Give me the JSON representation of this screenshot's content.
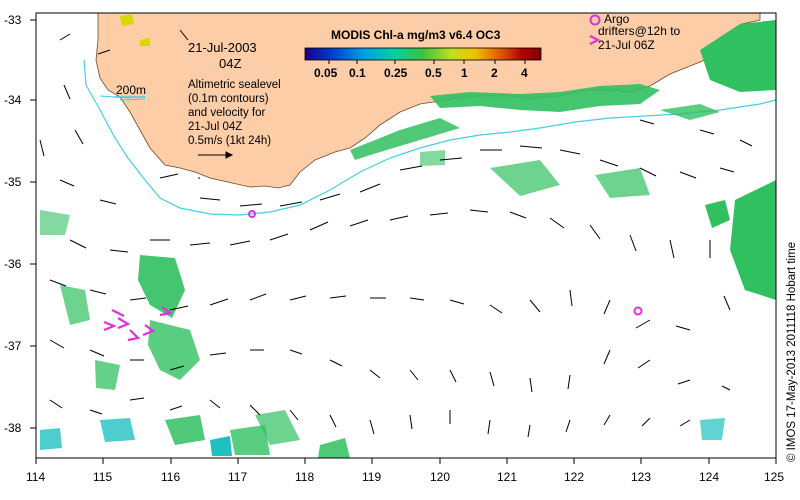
{
  "map": {
    "date": "21-Jul-2003",
    "time": "04Z",
    "colorbar": {
      "title": "MODIS Chl-a mg/m3 v6.4 OC3",
      "ticks": [
        "0.05",
        "0.1",
        "0.25",
        "0.5",
        "1",
        "2",
        "4"
      ],
      "colors": [
        "#1a0080",
        "#0040d0",
        "#00a0e0",
        "#00d0a0",
        "#40c040",
        "#c0e020",
        "#f0c000",
        "#e06000",
        "#b00000",
        "#800000"
      ]
    },
    "contour_label": "200m",
    "info_lines": [
      "Altimetric sealevel",
      "(0.1m contours)",
      "and velocity for",
      "21-Jul 04Z",
      "0.5m/s (1kt 24h)"
    ],
    "argo_label": "Argo",
    "drifters_label": "drifters@12h to",
    "drifters_date": "21-Jul 06Z",
    "credit": "© IMOS 17-May-2013 2011118 Hobart time",
    "lon_ticks": [
      "114",
      "115",
      "116",
      "117",
      "118",
      "119",
      "120",
      "121",
      "122",
      "123",
      "124",
      "125"
    ],
    "lat_ticks": [
      "-33",
      "-34",
      "-35",
      "-36",
      "-37",
      "-38"
    ],
    "colors": {
      "land": "#fccda7",
      "contour": "#40d0e8",
      "argo": "#e030e0",
      "chl_green": "#30c060"
    }
  }
}
